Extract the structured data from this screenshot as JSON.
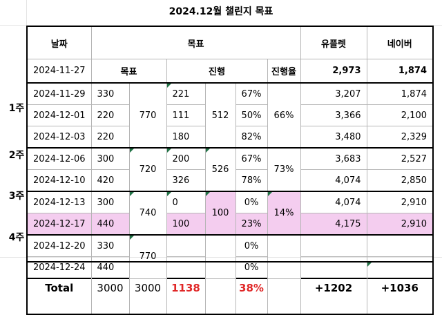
{
  "title": "2024.12월 챌린지 목표",
  "headers": {
    "date": "날짜",
    "goal": "목표",
    "upl": "유플렛",
    "naver": "네이버"
  },
  "base": {
    "date": "2024-11-27",
    "goal": "목표",
    "progress": "진행",
    "rate": "진행율",
    "upl": "2,973",
    "naver": "1,874"
  },
  "weeks": [
    {
      "label": "1주",
      "goal_sum": "770",
      "prog_sum": "512",
      "rate": "66%"
    },
    {
      "label": "2주",
      "goal_sum": "720",
      "prog_sum": "526",
      "rate": "73%"
    },
    {
      "label": "3주",
      "goal_sum": "740",
      "prog_sum": "100",
      "rate": "14%"
    },
    {
      "label": "4주",
      "goal_sum": "770",
      "prog_sum": "",
      "rate": ""
    }
  ],
  "rows": [
    {
      "date": "2024-11-29",
      "goal": "330",
      "prog": "221",
      "pct": "67%",
      "upl": "3,207",
      "naver": "1,874"
    },
    {
      "date": "2024-12-01",
      "goal": "220",
      "prog": "111",
      "pct": "50%",
      "upl": "3,366",
      "naver": "2,100"
    },
    {
      "date": "2024-12-03",
      "goal": "220",
      "prog": "180",
      "pct": "82%",
      "upl": "3,480",
      "naver": "2,329"
    },
    {
      "date": "2024-12-06",
      "goal": "300",
      "prog": "200",
      "pct": "67%",
      "upl": "3,683",
      "naver": "2,527"
    },
    {
      "date": "2024-12-10",
      "goal": "420",
      "prog": "326",
      "pct": "78%",
      "upl": "4,074",
      "naver": "2,850"
    },
    {
      "date": "2024-12-13",
      "goal": "300",
      "prog": "0",
      "pct": "0%",
      "upl": "4,074",
      "naver": "2,910"
    },
    {
      "date": "2024-12-17",
      "goal": "440",
      "prog": "100",
      "pct": "23%",
      "upl": "4,175",
      "naver": "2,910"
    },
    {
      "date": "2024-12-20",
      "goal": "330",
      "prog": "",
      "pct": "0%",
      "upl": "",
      "naver": ""
    },
    {
      "date": "2024-12-24",
      "goal": "440",
      "prog": "",
      "pct": "0%",
      "upl": "",
      "naver": ""
    }
  ],
  "total": {
    "label": "Total",
    "goal_a": "3000",
    "goal_b": "3000",
    "progress": "1138",
    "rate": "38%",
    "upl": "+1202",
    "naver": "+1036"
  },
  "colors": {
    "highlight": "#f4cdef",
    "red": "#e02727",
    "marker": "#217346"
  }
}
